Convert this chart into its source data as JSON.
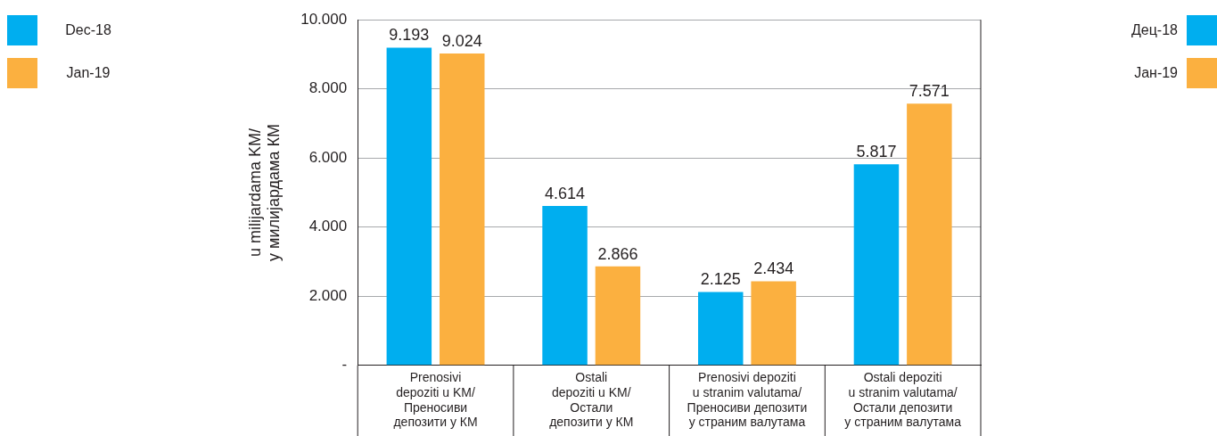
{
  "chart_data": {
    "type": "bar",
    "ylabel": "u milijardama KM/\nу милијардама КМ",
    "categories": [
      "Prenosivi\ndepoziti u KM/\nПреносиви\nдепозити у КМ",
      "Ostali\ndepoziti u KM/\nОстали\nдепозити у КМ",
      "Prenosivi depoziti\nu stranim valutama/\nПреносиви депозити\nу страним валутама",
      "Ostali depoziti\nu stranim valutama/\nОстали депозити\nу страним валутама"
    ],
    "series": [
      {
        "name": "Dec-18",
        "color": "#00aeef",
        "values": [
          9193,
          4614,
          2125,
          5817
        ],
        "value_labels": [
          "9.193",
          "4.614",
          "2.125",
          "5.817"
        ]
      },
      {
        "name": "Jan-19",
        "color": "#fbb040",
        "values": [
          9024,
          2866,
          2434,
          7571
        ],
        "value_labels": [
          "9.024",
          "2.866",
          "2.434",
          "7.571"
        ]
      }
    ],
    "ylim": [
      0,
      10000
    ],
    "yticks": [
      {
        "value": 0,
        "label": "-"
      },
      {
        "value": 2000,
        "label": "2.000"
      },
      {
        "value": 4000,
        "label": "4.000"
      },
      {
        "value": 6000,
        "label": "6.000"
      },
      {
        "value": 8000,
        "label": "8.000"
      },
      {
        "value": 10000,
        "label": "10.000"
      }
    ],
    "grid": "y",
    "legend": "top left",
    "annotations": [
      "Дец-18",
      "Јан-19"
    ]
  }
}
